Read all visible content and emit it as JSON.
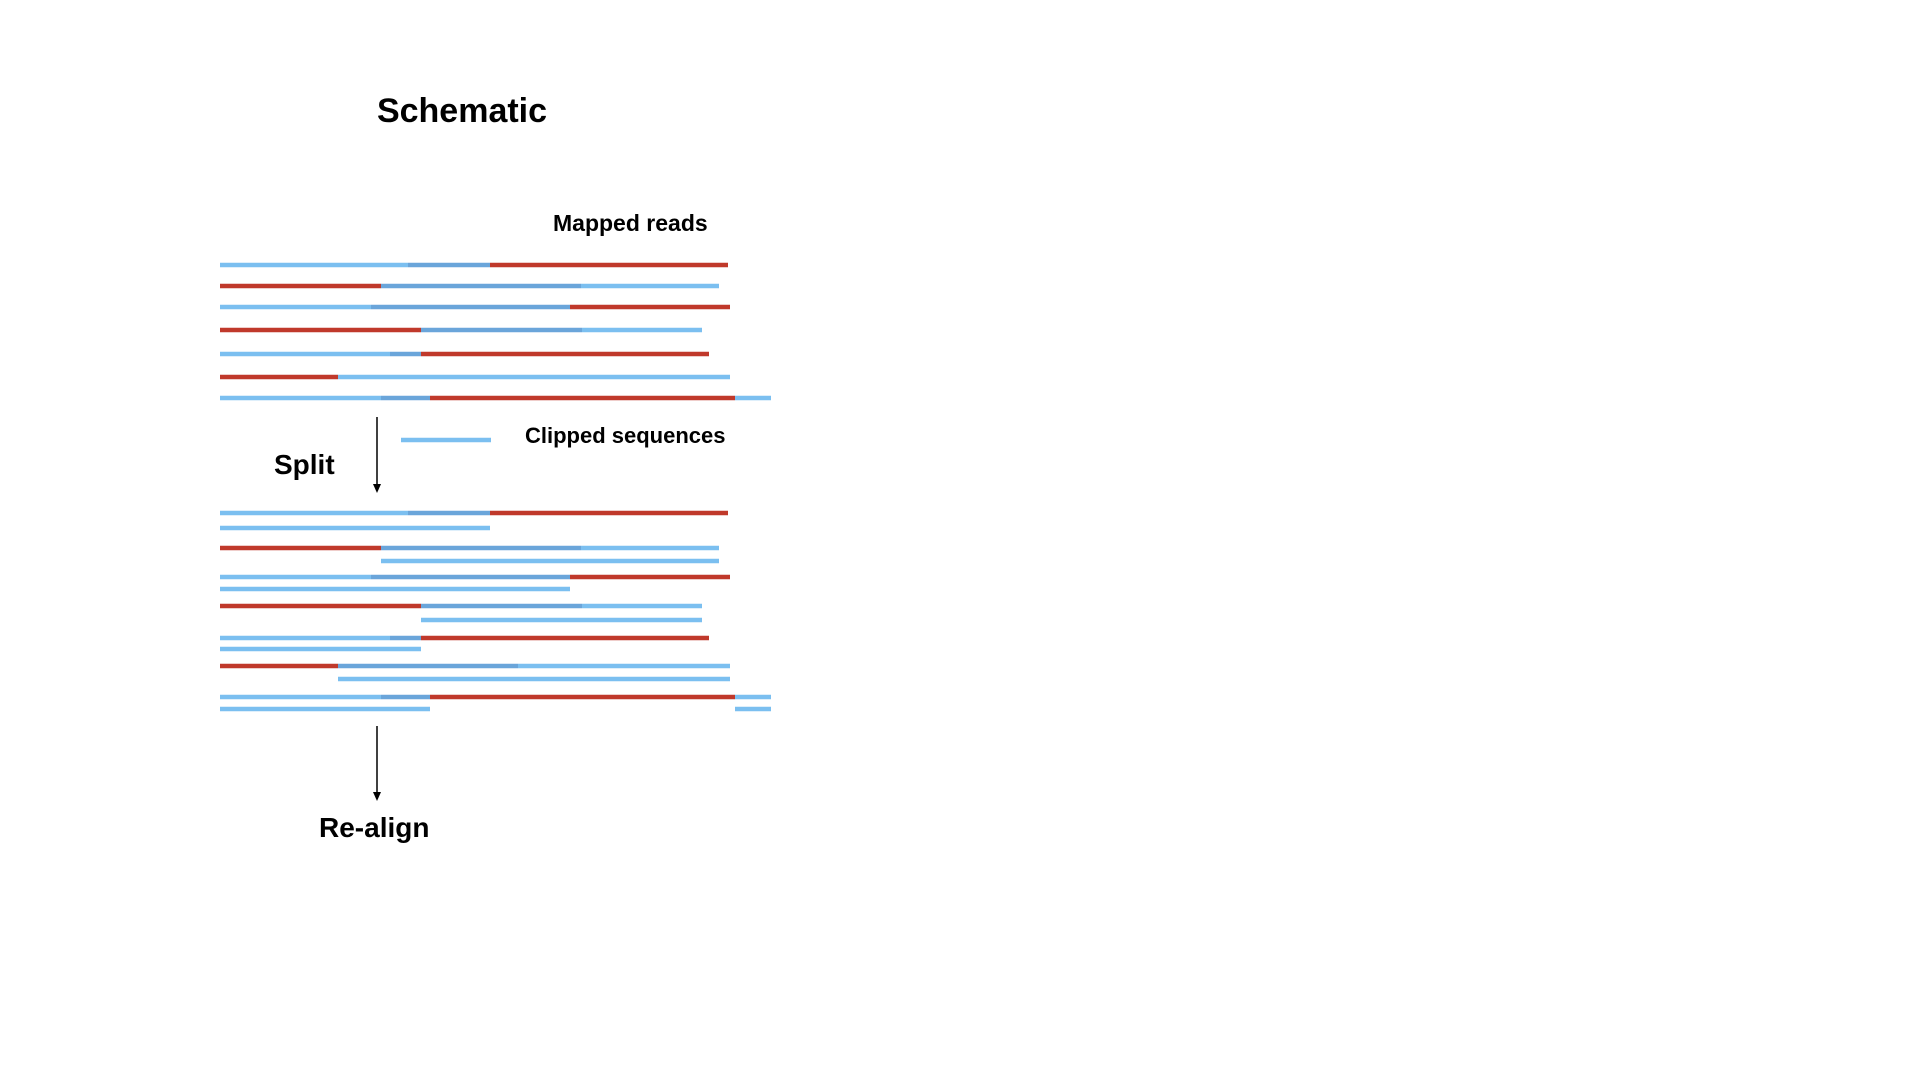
{
  "title": "Schematic",
  "labels": {
    "mapped_reads": "Mapped reads",
    "clipped_sequences": "Clipped sequences",
    "split": "Split",
    "realign": "Re-align"
  },
  "colors": {
    "blue": "#7bbff0",
    "blue_dark": "#6aa5da",
    "red": "#c0392b",
    "arrow": "#000000"
  }
}
